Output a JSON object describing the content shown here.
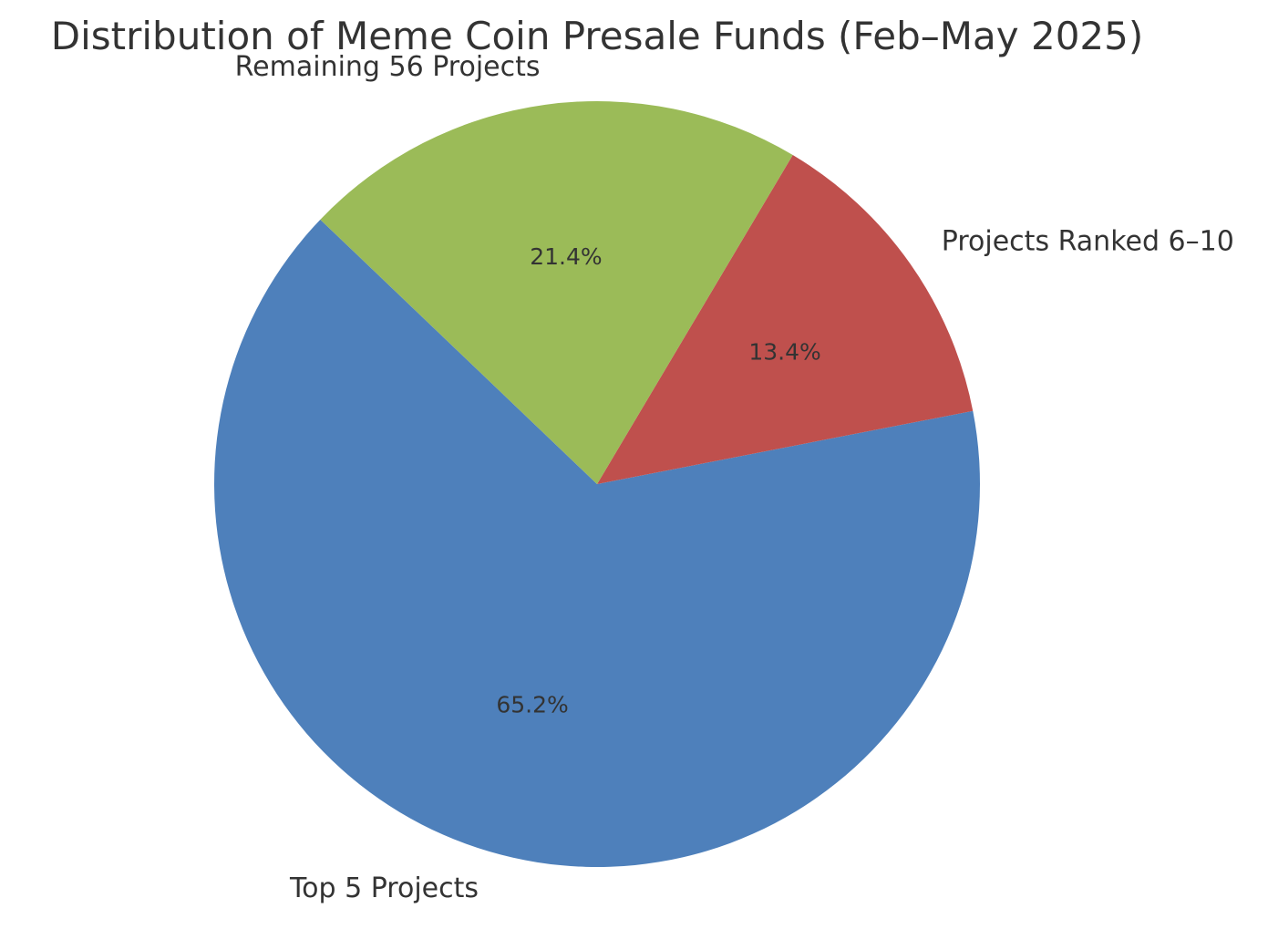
{
  "chart_data": {
    "type": "pie",
    "title": "Distribution of Meme Coin Presale Funds (Feb–May 2025)",
    "slices": [
      {
        "label": "Top 5 Projects",
        "value": 65.2,
        "value_label": "65.2%",
        "color": "#4e80bb"
      },
      {
        "label": "Projects Ranked 6–10",
        "value": 13.4,
        "value_label": "13.4%",
        "color": "#bf504d"
      },
      {
        "label": "Remaining 56 Projects",
        "value": 21.4,
        "value_label": "21.4%",
        "color": "#9bbb58"
      }
    ],
    "legend": "none"
  }
}
